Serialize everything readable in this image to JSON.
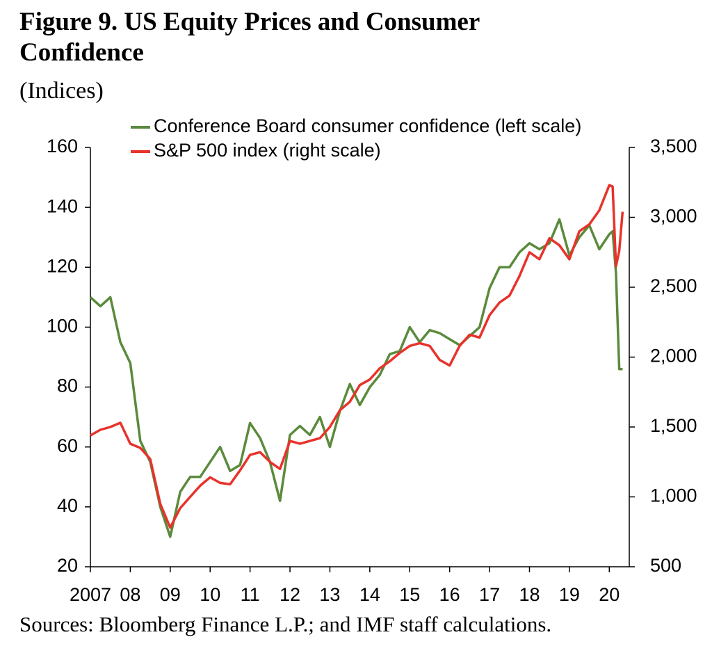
{
  "chart_data": {
    "type": "line",
    "title": "Figure 9. US Equity Prices and Consumer Confidence",
    "subtitle": "(Indices)",
    "source": "Sources: Bloomberg Finance L.P.; and IMF staff calculations.",
    "x": [
      2007.0,
      2007.25,
      2007.5,
      2007.75,
      2008.0,
      2008.25,
      2008.5,
      2008.75,
      2009.0,
      2009.25,
      2009.5,
      2009.75,
      2010.0,
      2010.25,
      2010.5,
      2010.75,
      2011.0,
      2011.25,
      2011.5,
      2011.75,
      2012.0,
      2012.25,
      2012.5,
      2012.75,
      2013.0,
      2013.25,
      2013.5,
      2013.75,
      2014.0,
      2014.25,
      2014.5,
      2014.75,
      2015.0,
      2015.25,
      2015.5,
      2015.75,
      2016.0,
      2016.25,
      2016.5,
      2016.75,
      2017.0,
      2017.25,
      2017.5,
      2017.75,
      2018.0,
      2018.25,
      2018.5,
      2018.75,
      2019.0,
      2019.25,
      2019.5,
      2019.75,
      2020.0,
      2020.083,
      2020.167,
      2020.25,
      2020.333
    ],
    "series": [
      {
        "name": "Conference Board consumer confidence (left scale)",
        "color": "#5b8a3c",
        "axis": "y",
        "values": [
          110,
          107,
          110,
          95,
          88,
          62,
          55,
          40,
          30,
          45,
          50,
          50,
          55,
          60,
          52,
          54,
          68,
          63,
          55,
          42,
          64,
          67,
          64,
          70,
          60,
          72,
          81,
          74,
          80,
          84,
          91,
          92,
          100,
          95,
          99,
          98,
          96,
          94,
          97,
          100,
          113,
          120,
          120,
          125,
          128,
          126,
          128,
          136,
          124,
          130,
          134,
          126,
          131,
          132,
          118,
          86,
          86
        ]
      },
      {
        "name": "S&P 500 index (right scale)",
        "color": "#e8322b",
        "axis": "y2",
        "values": [
          1440,
          1480,
          1500,
          1530,
          1380,
          1350,
          1270,
          950,
          780,
          920,
          1000,
          1080,
          1140,
          1100,
          1090,
          1190,
          1300,
          1320,
          1250,
          1200,
          1400,
          1380,
          1400,
          1420,
          1500,
          1620,
          1680,
          1800,
          1840,
          1920,
          1970,
          2030,
          2080,
          2100,
          2080,
          1980,
          1940,
          2080,
          2160,
          2140,
          2300,
          2390,
          2440,
          2580,
          2750,
          2700,
          2850,
          2800,
          2700,
          2900,
          2950,
          3050,
          3230,
          3220,
          2650,
          2760,
          3040
        ]
      }
    ],
    "xlim": [
      2007,
      2020.5
    ],
    "xticks": [
      {
        "value": 2007,
        "label": "2007"
      },
      {
        "value": 2008,
        "label": "08"
      },
      {
        "value": 2009,
        "label": "09"
      },
      {
        "value": 2010,
        "label": "10"
      },
      {
        "value": 2011,
        "label": "11"
      },
      {
        "value": 2012,
        "label": "12"
      },
      {
        "value": 2013,
        "label": "13"
      },
      {
        "value": 2014,
        "label": "14"
      },
      {
        "value": 2015,
        "label": "15"
      },
      {
        "value": 2016,
        "label": "16"
      },
      {
        "value": 2017,
        "label": "17"
      },
      {
        "value": 2018,
        "label": "18"
      },
      {
        "value": 2019,
        "label": "19"
      },
      {
        "value": 2020,
        "label": "20"
      }
    ],
    "ylim": [
      20,
      160
    ],
    "yticks": [
      20,
      40,
      60,
      80,
      100,
      120,
      140,
      160
    ],
    "y2lim": [
      500,
      3500
    ],
    "y2ticks": [
      500,
      {
        "value": 1000,
        "label": "1,000"
      },
      {
        "value": 1500,
        "label": "1,500"
      },
      {
        "value": 2000,
        "label": "2,000"
      },
      {
        "value": 2500,
        "label": "2,500"
      },
      {
        "value": 3000,
        "label": "3,000"
      },
      {
        "value": 3500,
        "label": "3,500"
      }
    ]
  }
}
